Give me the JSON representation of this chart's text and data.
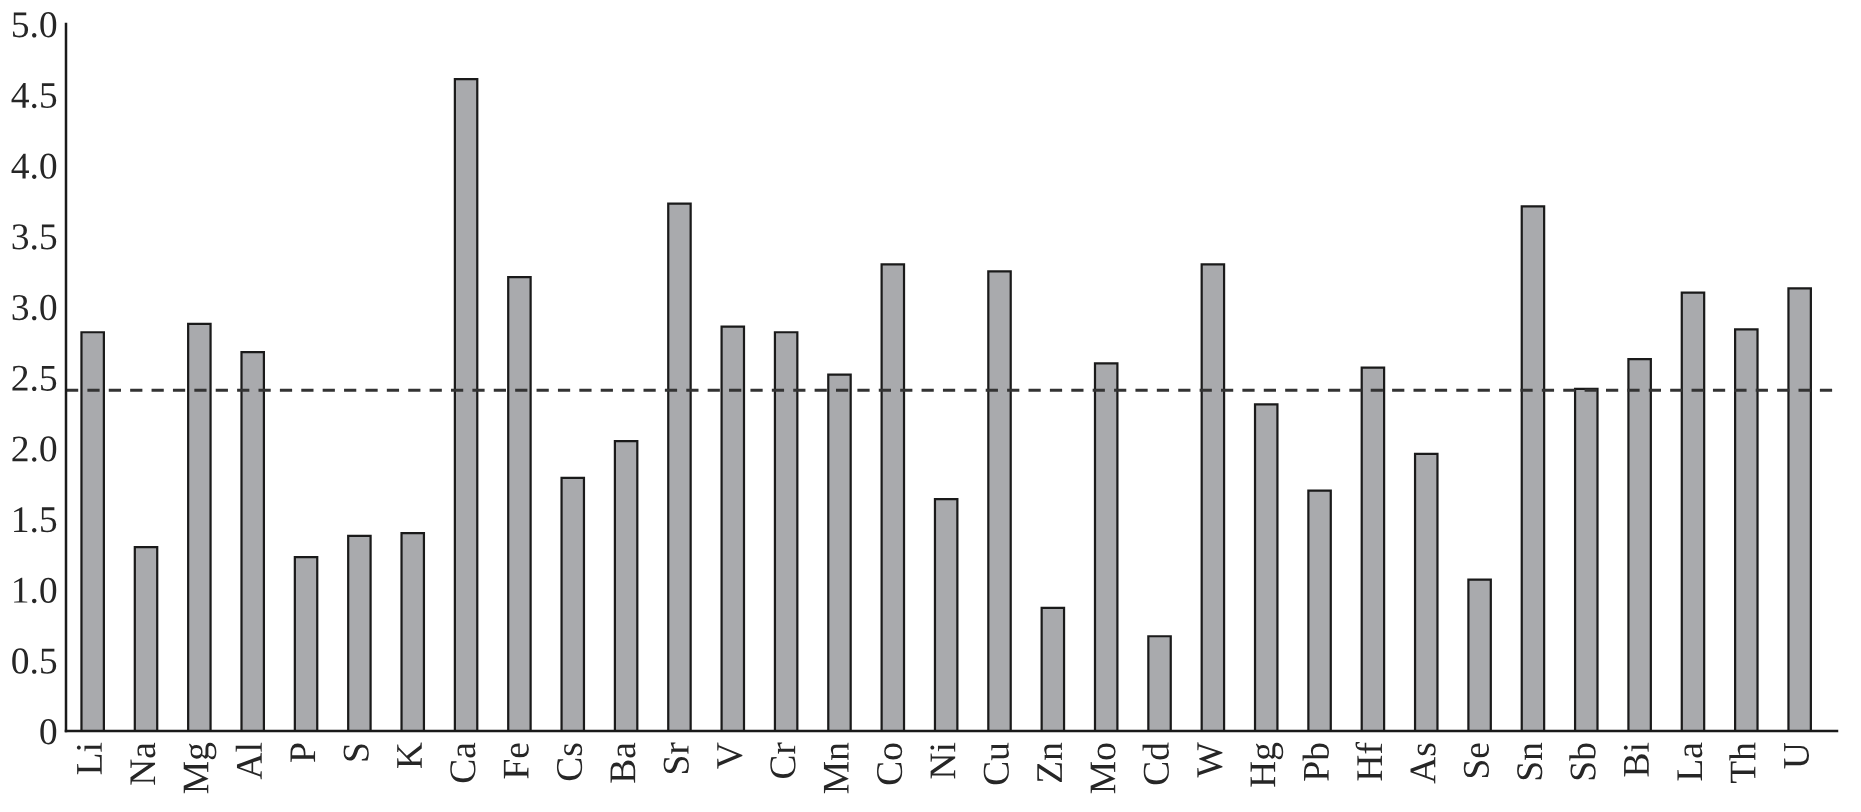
{
  "chart_data": {
    "type": "bar",
    "categories": [
      "Li",
      "Na",
      "Mg",
      "Al",
      "P",
      "S",
      "K",
      "Ca",
      "Fe",
      "Cs",
      "Ba",
      "Sr",
      "V",
      "Cr",
      "Mn",
      "Co",
      "Ni",
      "Cu",
      "Zn",
      "Mo",
      "Cd",
      "W",
      "Hg",
      "Pb",
      "Hf",
      "As",
      "Se",
      "Sn",
      "Sb",
      "Bi",
      "La",
      "Th",
      "U"
    ],
    "values": [
      2.82,
      1.3,
      2.88,
      2.68,
      1.23,
      1.38,
      1.4,
      4.61,
      3.21,
      1.79,
      2.05,
      3.73,
      2.86,
      2.82,
      2.52,
      3.3,
      1.64,
      3.25,
      0.87,
      2.6,
      0.67,
      3.3,
      2.31,
      1.7,
      2.57,
      1.96,
      1.07,
      3.71,
      2.42,
      2.63,
      3.1,
      2.84,
      3.13
    ],
    "color": "#a9aaad",
    "ylim": [
      0,
      5.0
    ],
    "yticks": [
      0,
      {
        "value": 0.5,
        "label": "0.5"
      },
      {
        "value": 1.0,
        "label": "1.0"
      },
      {
        "value": 1.5,
        "label": "1.5"
      },
      {
        "value": 2.0,
        "label": "2.0"
      },
      {
        "value": 2.5,
        "label": "2.5"
      },
      {
        "value": 3.0,
        "label": "3.0"
      },
      {
        "value": 3.5,
        "label": "3.5"
      },
      {
        "value": 4.0,
        "label": "4.0"
      },
      {
        "value": 4.5,
        "label": "4.5"
      },
      {
        "value": 5.0,
        "label": "5.0"
      }
    ],
    "ref_lines": [
      {
        "axis": "y",
        "value": 2.41,
        "color": "#333333",
        "line_style": "dashed"
      }
    ],
    "grid": false,
    "legend": false
  }
}
